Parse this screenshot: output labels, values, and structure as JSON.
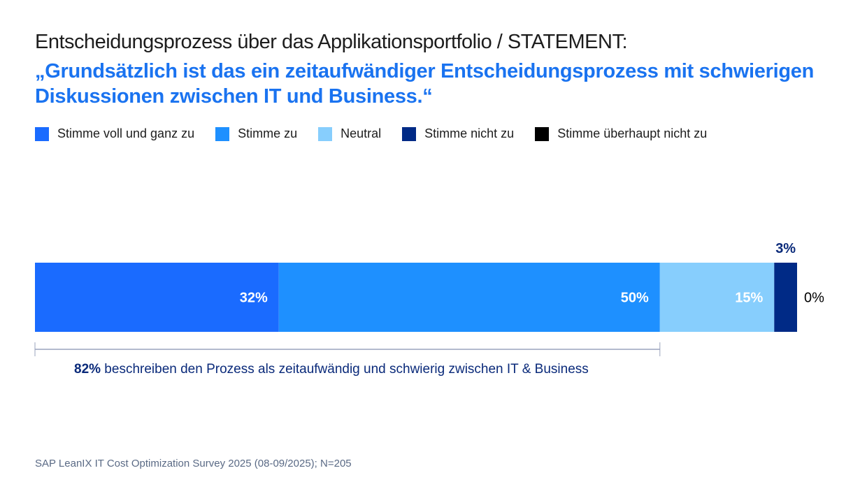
{
  "header": {
    "title": "Entscheidungsprozess über das Applikationsportfolio / STATEMENT:",
    "statement": "„Grundsätzlich ist das ein zeitaufwändiger Entscheidungsprozess mit schwierigen Diskussionen zwischen IT und Business.“"
  },
  "chart_data": {
    "type": "bar",
    "orientation": "horizontal-stacked",
    "categories": [
      "Stimme voll und ganz zu",
      "Stimme zu",
      "Neutral",
      "Stimme nicht zu",
      "Stimme überhaupt nicht zu"
    ],
    "values": [
      32,
      50,
      15,
      3,
      0
    ],
    "labels": [
      "32%",
      "50%",
      "15%",
      "3%",
      "0%"
    ],
    "colors": [
      "#1a6bff",
      "#1e90ff",
      "#87cefd",
      "#002a86",
      "#000000"
    ],
    "xlim": [
      0,
      100
    ],
    "legend_position": "top"
  },
  "annotation": {
    "value": "82%",
    "text": " beschreiben den Prozess als zeitaufwändig und schwierig zwischen IT & Business"
  },
  "footer": "SAP LeanIX IT Cost Optimization Survey 2025 (08-09/2025); N=205"
}
